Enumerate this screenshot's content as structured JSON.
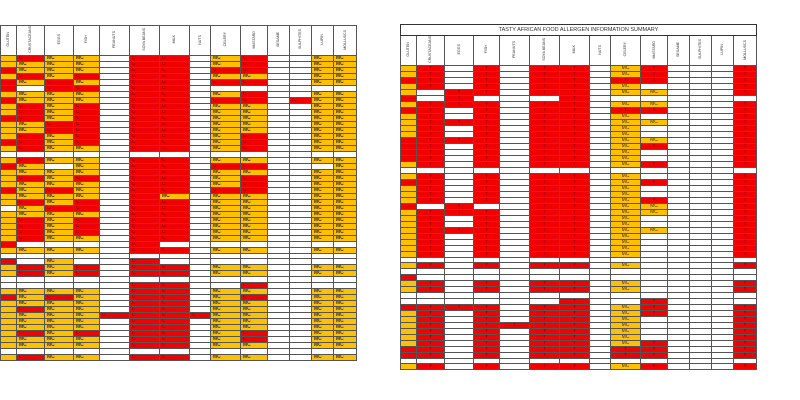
{
  "columns": [
    "GLUTEN",
    "CRUSTACEANS",
    "EGGS",
    "FISH",
    "PEANUTS",
    "SOYA BEANS",
    "MILK",
    "NUTS",
    "CELERY",
    "MUSTARD",
    "SESAME",
    "SULPHITES",
    "LUPIN",
    "MOLLUSCS"
  ],
  "colors": {
    "contains": "#f00000",
    "may_contain": "#ffc000",
    "none": "#ffffff"
  },
  "left_table": {
    "codes": {
      "C": "C",
      "M": "MC",
      "R": "",
      "O": "",
      ".": ""
    },
    "rows": [
      "OCMM.CC.MC..MM",
      "OMMM.CC.MC..MM",
      "RMMM.CC.CC..MM",
      "OCMC.CC.MM..MM",
      "RMCM.CC.CC..MM",
      "R.CC.CC.......",
      "OMMM.CC.MC..MM",
      "RMMM.CC.CC.CMM",
      "OCMC.CC.MM..MM",
      "OCMC.CC.MM..MM",
      "RCMC.CC.MM..MM",
      "OMCC.CC.MM..MM",
      "OMCC.CC.MM..MM",
      "OCMC.CC.MC..MM",
      "RCMC.CC.MC..MM",
      "OCMM.CC.MC..MM",
      "..............",
      "OCMM.CC.MM..MM",
      "RM.M.CC.CC...M",
      "OMMM.CC.MM..MM",
      "OCMC.CC.MC..MM",
      "OMMM.CC.MC..MM",
      "RMCM.CC.CC..MM",
      "OMMM.CM.MM..MM",
      "OCMC.CC.MM..MM",
      ".MCC.CC.MM..MM",
      "OMMM.CC.MM..MM",
      "OCMC.CC.MM..MM",
      "OCMC.CC.MM..MM",
      "OCMC.CC.MM..MM",
      "OCMM.CC.MM..MM",
      "R....C........",
      "OMMM.CC.MM..MM",
      "..............",
      "R.M..C........",
      "OCMC.CC.MM..MM",
      "OCMC.CC.MM..MM",
      "..............",
      ".....CC..C....",
      "OMMM.CC.MM..MM",
      "RMCM.CC.MC..MM",
      "OMMM.CC.MM..MM",
      "OCMM.CC.MM..MM",
      "OMMMCCCCMM..MM",
      "OMMM.CC.MM..MM",
      "OMMM.CC.MM..MM",
      "OCMC.CC.MC..MM",
      "OMMM.CC.MC..MM",
      "OMMM.CC.MM..MM",
      "..............",
      "OCMM.CC.MM..MM"
    ]
  },
  "right_table": {
    "title": "TASTY AFRICAN FOOD ALLERGEN INFORMATION SUMMARY",
    "codes": {
      "Y": "Y",
      "M": "MC",
      "R": "",
      "O": "",
      ".": ""
    },
    "rows": [
      "OY.Y.YY.MY...Y",
      "OY.Y.YY.MY...Y",
      "RY.Y.YY.YY...Y",
      "OY.Y.YY.M....Y",
      "O.YY.YY.MM...Y",
      "R.Y...Y.......",
      "OYYY.YY.MM...Y",
      "RY.Y.YY.YY...Y",
      "OY.Y.YY.M....Y",
      "OYYY.YY.MM...Y",
      "OY.Y.YY.M....Y",
      "OY.Y.YY.M....Y",
      "RYYY.YY.MM...Y",
      "RY.Y.YY.MY...Y",
      "RY.Y.YY.M....Y",
      "RY.Y.YY.M....Y",
      "OY.Y.YY.MY...Y",
      "..............",
      "OY.Y.YY.M....Y",
      "RY.Y.YY.MY...Y",
      "OY.Y.YY.M....Y",
      "OY.Y.YY.M....Y",
      "OY.Y.YY.MY...Y",
      "R.Y..YY.MM...Y",
      "OYYY.YY.MM...Y",
      "OY.Y.YY.M....Y",
      "OY.Y.YY.M....Y",
      "OYYY.YY.MM...Y",
      "OY.Y.YY.M....Y",
      "OY.Y.YY.M....Y",
      "OY.Y.YY.M....Y",
      "OY.Y.YY.M....Y",
      "..............",
      "OY.Y.YY.M....Y",
      "..............",
      "R.............",
      "OY.Y.YY.M....Y",
      "OY.Y.YY.M....Y",
      "..............",
      "......Y..Y....",
      "RYYY.YY.MY...Y",
      "OY.Y.YY.MY...Y",
      "OY.Y.YY.M....Y",
      "OY.YYYY.M....Y",
      "OY.Y.YY.M....Y",
      "OY.Y.YY.M....Y",
      "OY.Y.YY.MY...Y",
      "RY.Y.YY.YY...Y",
      "RY.Y.YY.YY...Y",
      "..............",
      "OY.Y.YY.MY...Y"
    ]
  }
}
